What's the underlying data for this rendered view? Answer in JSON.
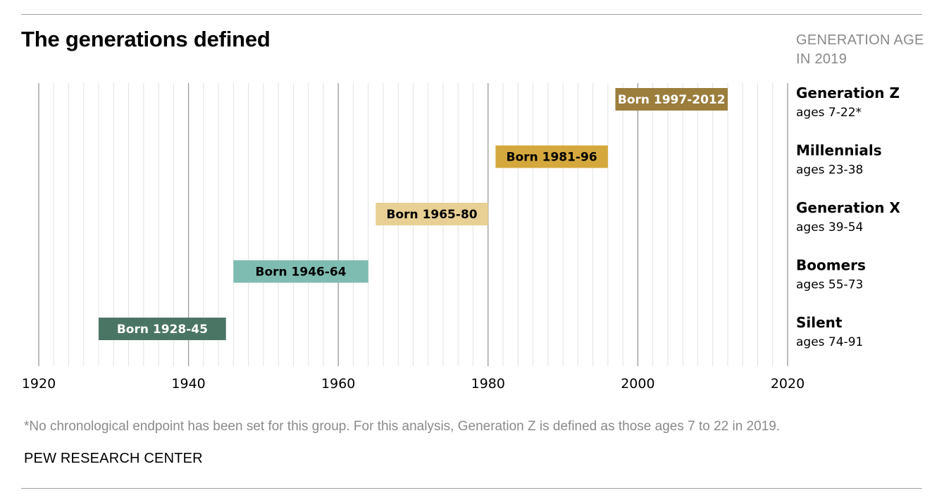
{
  "title": "The generations defined",
  "age_header": [
    "GENERATION AGE",
    "IN 2019"
  ],
  "note": "*No chronological endpoint has been set for this group. For this analysis, Generation Z is defined as those ages 7 to 22 in 2019.",
  "source": "PEW RESEARCH CENTER",
  "chart_data": {
    "type": "bar",
    "orientation": "horizontal-range",
    "xlim": [
      1920,
      2020
    ],
    "x_ticks": [
      1920,
      1940,
      1960,
      1980,
      2000,
      2020
    ],
    "grid": true,
    "minor_grid_step": 2,
    "series": [
      {
        "name": "Generation Z",
        "ages": "ages 7-22*",
        "start": 1997,
        "end": 2012,
        "label": "Born 1997-2012",
        "color": "#9b7e3c",
        "text_color": "#ffffff"
      },
      {
        "name": "Millennials",
        "ages": "ages 23-38",
        "start": 1981,
        "end": 1996,
        "label": "Born 1981-96",
        "color": "#d4a83c",
        "text_color": "#000000"
      },
      {
        "name": "Generation X",
        "ages": "ages 39-54",
        "start": 1965,
        "end": 1980,
        "label": "Born 1965-80",
        "color": "#e8cf93",
        "text_color": "#000000"
      },
      {
        "name": "Boomers",
        "ages": "ages 55-73",
        "start": 1946,
        "end": 1964,
        "label": "Born 1946-64",
        "color": "#7ebcb1",
        "text_color": "#000000"
      },
      {
        "name": "Silent",
        "ages": "ages 74-91",
        "start": 1928,
        "end": 1945,
        "label": "Born 1928-45",
        "color": "#4a7565",
        "text_color": "#ffffff"
      }
    ]
  }
}
